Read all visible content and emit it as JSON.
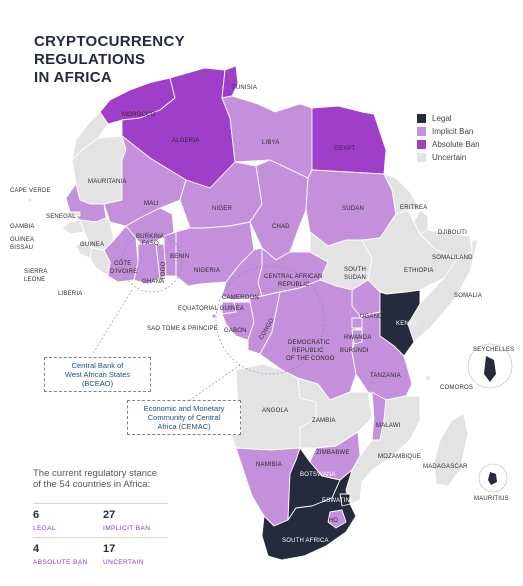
{
  "title_line1": "CRYPTOCURRENCY REGULATIONS",
  "title_line2": "IN AFRICA",
  "legend": [
    {
      "label": "Legal",
      "color": "#252a3c"
    },
    {
      "label": "Implicit Ban",
      "color": "#c48fdb"
    },
    {
      "label": "Absolute Ban",
      "color": "#9f3ec9"
    },
    {
      "label": "Uncertain",
      "color": "#e3e3e3"
    }
  ],
  "countries": {
    "tunisia": "TUNISIA",
    "morocco": "MOROCCO",
    "algeria": "ALGERIA",
    "libya": "LIBYA",
    "egypt": "EGYPT",
    "cape_verde": "CAPE VERDE",
    "mauritania": "MAURITANIA",
    "mali": "MALI",
    "niger": "NIGER",
    "chad": "CHAD",
    "sudan": "SUDAN",
    "eritrea": "ERITREA",
    "djibouti": "DJIBOUTI",
    "senegal": "SENEGAL",
    "gambia": "GAMBIA",
    "guinea_bissau_1": "GUINEA",
    "guinea_bissau_2": "BISSAU",
    "guinea": "GUINEA",
    "burkina_1": "BURKINA",
    "burkina_2": "FASO",
    "benin": "BENIN",
    "nigeria": "NIGERIA",
    "somaliland": "SOMALILAND",
    "ethiopia": "ETHIOPIA",
    "south_sudan_1": "SOUTH",
    "south_sudan_2": "SUDAN",
    "sierra_leone_1": "SIERRA",
    "sierra_leone_2": "LEONE",
    "cote_1": "CÔTE",
    "cote_2": "D'IVOIRE",
    "togo": "TOGO",
    "ghana": "GHANA",
    "car_1": "CENTRAL AFRICAN",
    "car_2": "REPUBLIC",
    "liberia": "LIBERIA",
    "somalia": "SOMALIA",
    "cameroon": "CAMEROON",
    "eq_guinea": "EQUATORIAL GUINEA",
    "uganda": "UGANDA",
    "kenya": "KENYA",
    "stp": "SAO TOME & PRINCIPE",
    "gabon": "GABON",
    "congo": "CONGO",
    "rwanda": "RWANDA",
    "seychelles": "SEYCHELLES",
    "burundi": "BURUNDI",
    "drc_1": "DEMOCRATIC",
    "drc_2": "REPUBLIC",
    "drc_3": "OF THE CONGO",
    "tanzania": "TANZANIA",
    "comoros": "COMOROS",
    "malawi": "MALAWI",
    "angola": "ANGOLA",
    "zambia": "ZAMBIA",
    "zimbabwe": "ZIMBABWE",
    "mozambique": "MOZAMBIQUE",
    "madagascar": "MADAGASCAR",
    "namibia": "NAMIBIA",
    "botswana": "BOTSWANA",
    "mauritius": "MAURITIUS",
    "eswatini": "ESWATINI",
    "lesotho": "LESOTHO",
    "south_africa": "SOUTH AFRICA"
  },
  "bceao": {
    "line1": "Central Bank of",
    "line2": "West African States",
    "line3": "(BCEAO)"
  },
  "cemac": {
    "line1": "Economic and Monetary",
    "line2": "Community of Central",
    "line3": "Africa (CEMAC)"
  },
  "stance_line1": "The current regulatory stance",
  "stance_line2": "of the 54 countries in Africa:",
  "stats": [
    {
      "value": "6",
      "label": "LEGAL"
    },
    {
      "value": "27",
      "label": "IMPLICIT BAN"
    },
    {
      "value": "4",
      "label": "ABSOLUTE BAN"
    },
    {
      "value": "17",
      "label": "UNCERTAIN"
    }
  ]
}
